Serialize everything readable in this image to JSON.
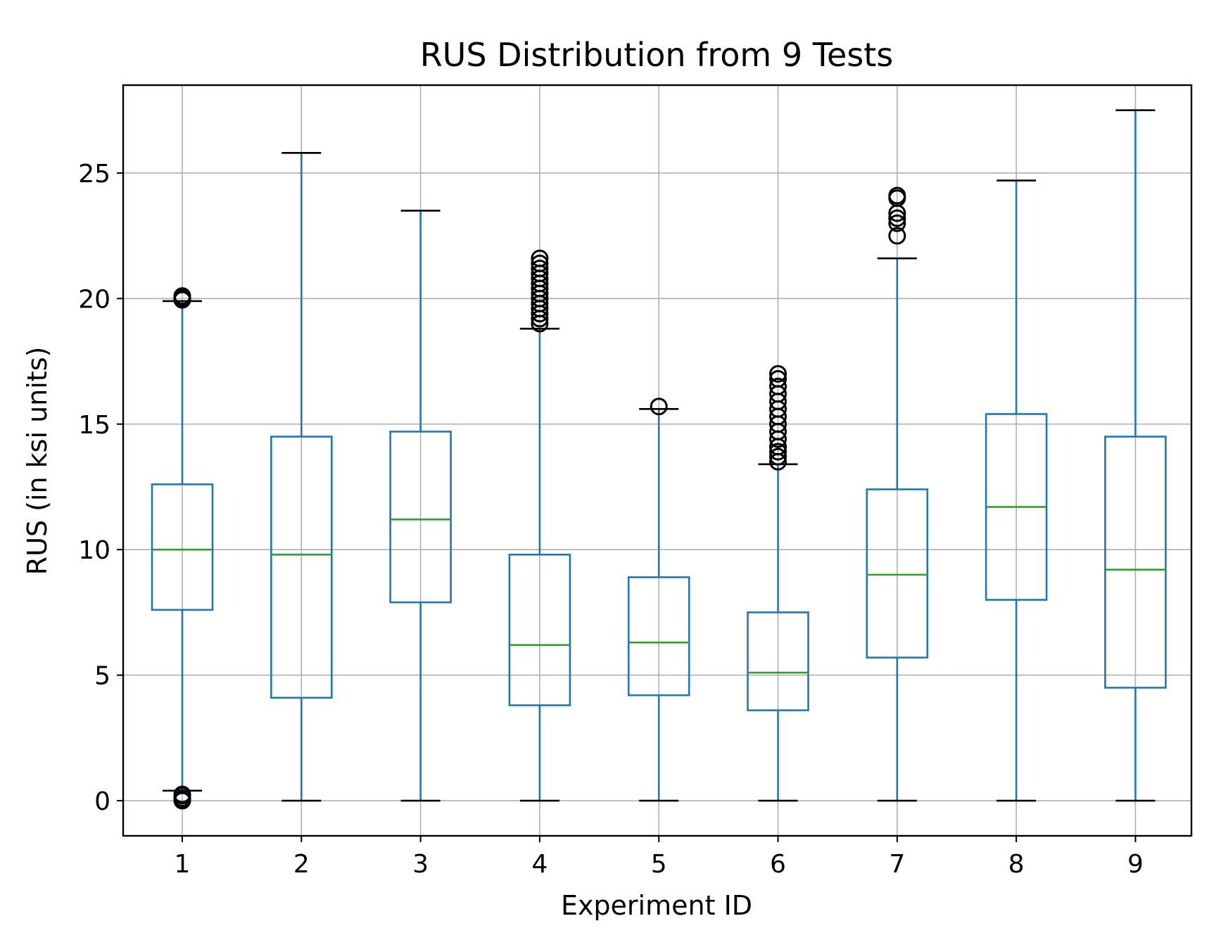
{
  "chart_data": {
    "type": "boxplot",
    "title": "RUS Distribution from 9 Tests",
    "xlabel": "Experiment ID",
    "ylabel": "RUS (in ksi units)",
    "categories": [
      "1",
      "2",
      "3",
      "4",
      "5",
      "6",
      "7",
      "8",
      "9"
    ],
    "ylim": [
      -1.4,
      28.5
    ],
    "yticks": [
      0,
      5,
      10,
      15,
      20,
      25
    ],
    "grid": true,
    "colors": {
      "box": "#1f77b4",
      "median": "#2ca02c",
      "cap": "#000000",
      "flier": "#000000"
    },
    "boxes": [
      {
        "id": "1",
        "whislo": 0.4,
        "q1": 7.6,
        "med": 10.0,
        "q3": 12.6,
        "whishi": 19.9,
        "fliers": [
          0.0,
          0.05,
          0.1,
          0.2,
          0.25,
          19.95,
          20.0,
          20.05,
          20.1
        ]
      },
      {
        "id": "2",
        "whislo": 0.0,
        "q1": 4.1,
        "med": 9.8,
        "q3": 14.5,
        "whishi": 25.8,
        "fliers": []
      },
      {
        "id": "3",
        "whislo": 0.0,
        "q1": 7.9,
        "med": 11.2,
        "q3": 14.7,
        "whishi": 23.5,
        "fliers": []
      },
      {
        "id": "4",
        "whislo": 0.0,
        "q1": 3.8,
        "med": 6.2,
        "q3": 9.8,
        "whishi": 18.8,
        "fliers": [
          19.0,
          19.2,
          19.4,
          19.6,
          19.8,
          20.0,
          20.2,
          20.4,
          20.6,
          20.8,
          21.0,
          21.2,
          21.4,
          21.6
        ]
      },
      {
        "id": "5",
        "whislo": 0.0,
        "q1": 4.2,
        "med": 6.3,
        "q3": 8.9,
        "whishi": 15.6,
        "fliers": [
          15.7
        ]
      },
      {
        "id": "6",
        "whislo": 0.0,
        "q1": 3.6,
        "med": 5.1,
        "q3": 7.5,
        "whishi": 13.4,
        "fliers": [
          13.5,
          13.7,
          13.9,
          14.1,
          14.4,
          14.7,
          15.0,
          15.3,
          15.6,
          15.9,
          16.2,
          16.5,
          16.8,
          17.0
        ]
      },
      {
        "id": "7",
        "whislo": 0.0,
        "q1": 5.7,
        "med": 9.0,
        "q3": 12.4,
        "whishi": 21.6,
        "fliers": [
          22.5,
          23.0,
          23.2,
          23.4,
          24.0,
          24.1
        ]
      },
      {
        "id": "8",
        "whislo": 0.0,
        "q1": 8.0,
        "med": 11.7,
        "q3": 15.4,
        "whishi": 24.7,
        "fliers": []
      },
      {
        "id": "9",
        "whislo": 0.0,
        "q1": 4.5,
        "med": 9.2,
        "q3": 14.5,
        "whishi": 27.5,
        "fliers": []
      }
    ]
  }
}
